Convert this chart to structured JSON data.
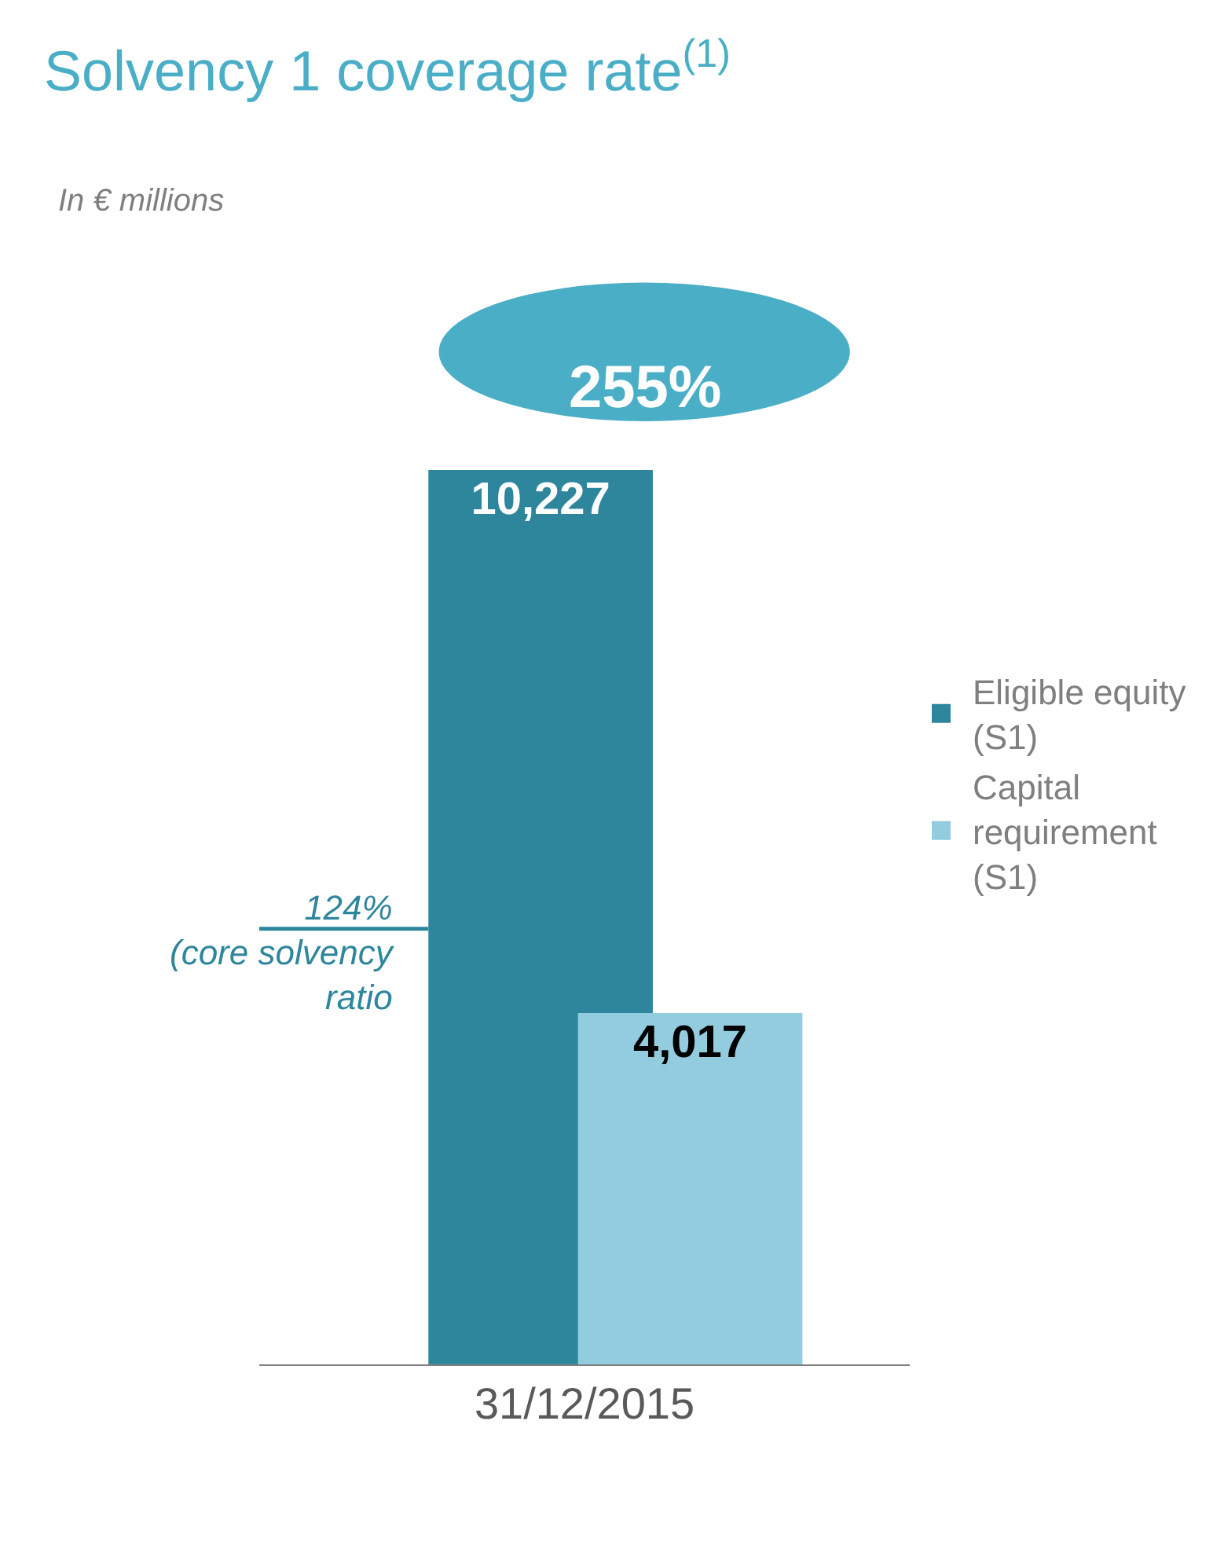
{
  "chart_data": {
    "type": "bar",
    "title": "Solvency 1 coverage rate$^{(1)}$",
    "subtitle": "In € millions",
    "categories": [
      "31/12/2015"
    ],
    "series": [
      {
        "name": "Eligible equity (S1)",
        "color": "#2e869c",
        "values": [
          10227
        ],
        "value_labels": [
          "10,227"
        ]
      },
      {
        "name": "Capital requirement (S1)",
        "color": "#94ccdf",
        "values": [
          4017
        ],
        "value_labels": [
          "4,017"
        ]
      }
    ],
    "tick_labels": "x",
    "legend": "right",
    "ref_lines": [
      {
        "axis": "y",
        "value": 4981,
        "label": "124%\n(core solvency\nratio",
        "color": "#2e869c"
      }
    ],
    "annotations": [
      "255%"
    ]
  }
}
